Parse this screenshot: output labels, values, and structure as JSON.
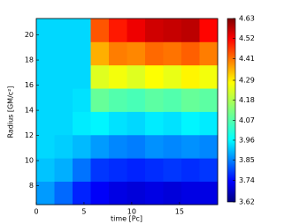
{
  "chart_data": {
    "type": "heatmap",
    "x_label": "time [Pc]",
    "y_label": "Radius [GM/c²]",
    "x_bins": [
      0,
      1.9,
      3.8,
      5.7,
      7.6,
      9.5,
      11.4,
      13.3,
      15.2,
      17.1,
      19
    ],
    "y_bins": [
      6.5,
      8.35,
      10.2,
      12.05,
      13.9,
      15.75,
      17.6,
      19.45,
      21.3
    ],
    "z": [
      [
        3.9,
        3.85,
        3.78,
        3.74,
        3.72,
        3.71,
        3.72,
        3.71,
        3.72,
        3.72
      ],
      [
        3.94,
        3.92,
        3.86,
        3.8,
        3.79,
        3.78,
        3.79,
        3.8,
        3.79,
        3.8
      ],
      [
        3.96,
        3.95,
        3.93,
        3.9,
        3.88,
        3.87,
        3.89,
        3.88,
        3.89,
        3.88
      ],
      [
        3.96,
        3.96,
        3.98,
        3.99,
        3.97,
        3.96,
        3.98,
        3.97,
        3.99,
        3.98
      ],
      [
        3.96,
        3.96,
        3.97,
        4.1,
        4.08,
        4.07,
        4.09,
        4.08,
        4.1,
        4.09
      ],
      [
        3.96,
        3.96,
        3.96,
        4.22,
        4.24,
        4.22,
        4.25,
        4.23,
        4.26,
        4.24
      ],
      [
        3.96,
        3.96,
        3.96,
        4.33,
        4.38,
        4.37,
        4.4,
        4.39,
        4.41,
        4.38
      ],
      [
        3.96,
        3.96,
        3.96,
        4.42,
        4.48,
        4.52,
        4.55,
        4.56,
        4.57,
        4.5
      ]
    ],
    "xlim": [
      0,
      19
    ],
    "xticks": [
      0,
      5,
      10,
      15
    ],
    "ylim": [
      6.5,
      21.3
    ],
    "yticks": [
      8,
      10,
      12,
      14,
      16,
      18,
      20
    ],
    "colormap": "jet",
    "zlim": [
      3.62,
      4.63
    ],
    "zticks": [
      3.62,
      3.74,
      3.85,
      3.96,
      4.07,
      4.18,
      4.29,
      4.41,
      4.52,
      4.63
    ]
  }
}
